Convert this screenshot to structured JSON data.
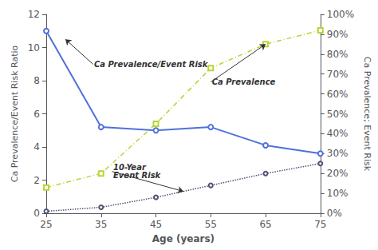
{
  "chart_data": {
    "type": "line",
    "x": [
      25,
      35,
      45,
      55,
      65,
      75
    ],
    "series": [
      {
        "values": [
          11.0,
          5.2,
          5.0,
          5.2,
          4.1,
          3.6
        ],
        "axis": "y",
        "marker": "circle",
        "line_style": "solid"
      },
      {
        "values": [
          13,
          20,
          45,
          73,
          85,
          92
        ],
        "axis": "y2",
        "marker": "square",
        "line_style": "dashdot"
      },
      {
        "values": [
          1,
          3,
          8,
          14,
          20,
          25
        ],
        "axis": "y2",
        "marker": "circle",
        "line_style": "dotted"
      }
    ],
    "xlabel": "Age (years)",
    "ylabel": "Ca Prevalence/Event Risk Ratio",
    "y2label": "Ca Prevalence; Event Risk",
    "xlim": [
      25,
      75
    ],
    "xticks": [
      25,
      35,
      45,
      55,
      65,
      75
    ],
    "ylim": [
      0,
      12
    ],
    "yticks": [
      0,
      2,
      4,
      6,
      8,
      10,
      12
    ],
    "y2lim": [
      0,
      100
    ],
    "y2ticks": [
      {
        "value": 0,
        "label": "0%"
      },
      {
        "value": 10,
        "label": "10%"
      },
      {
        "value": 20,
        "label": "20%"
      },
      {
        "value": 30,
        "label": "30%"
      },
      {
        "value": 40,
        "label": "40%"
      },
      {
        "value": 50,
        "label": "50%"
      },
      {
        "value": 60,
        "label": "60%"
      },
      {
        "value": 70,
        "label": "70%"
      },
      {
        "value": 80,
        "label": "80%"
      },
      {
        "value": 90,
        "label": "90%"
      },
      {
        "value": 100,
        "label": "100%"
      }
    ],
    "grid": false,
    "annotations": [
      {
        "text": "Ca Prevalence/Event Risk",
        "x": 28.5,
        "y": 10.5,
        "text_x": 33.5,
        "text_y": 9.0,
        "axis": "y"
      },
      {
        "text": "Ca Prevalence",
        "x": 65,
        "y": 85,
        "text_x": 55,
        "text_y": 66,
        "axis": "y2"
      },
      {
        "text": "10-Year\nEvent Risk",
        "x": 50,
        "y": 11,
        "text_x": 37,
        "text_y": 21,
        "axis": "y2"
      }
    ]
  }
}
